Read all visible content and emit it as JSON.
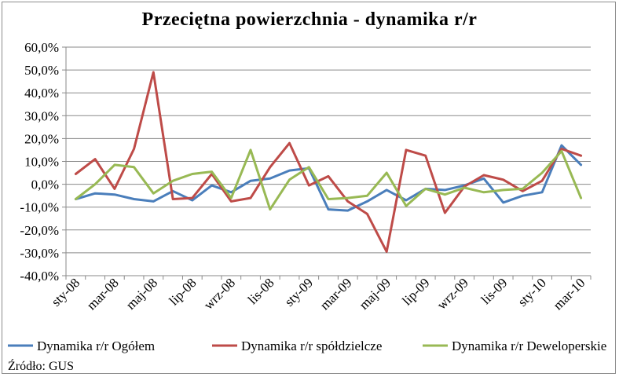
{
  "source_note": "Źródło: GUS",
  "chart_data": {
    "type": "line",
    "title": "Przeciętna powierzchnia - dynamika r/r",
    "xlabel": "",
    "ylabel": "",
    "ylim": [
      -40,
      60
    ],
    "yticks": [
      -40,
      -30,
      -20,
      -10,
      0,
      10,
      20,
      30,
      40,
      50,
      60
    ],
    "ytick_labels": [
      "-40,0%",
      "-30,0%",
      "-20,0%",
      "-10,0%",
      "0,0%",
      "10,0%",
      "20,0%",
      "30,0%",
      "40,0%",
      "50,0%",
      "60,0%"
    ],
    "grid": true,
    "legend": "bottom",
    "categories": [
      "sty-08",
      "lut-08",
      "mar-08",
      "kwi-08",
      "maj-08",
      "cze-08",
      "lip-08",
      "sie-08",
      "wrz-08",
      "paź-08",
      "lis-08",
      "gru-08",
      "sty-09",
      "lut-09",
      "mar-09",
      "kwi-09",
      "maj-09",
      "cze-09",
      "lip-09",
      "sie-09",
      "wrz-09",
      "paź-09",
      "lis-09",
      "gru-09",
      "sty-10",
      "lut-10",
      "mar-10"
    ],
    "tick_labels": [
      "sty-08",
      "mar-08",
      "maj-08",
      "lip-08",
      "wrz-08",
      "lis-08",
      "sty-09",
      "mar-09",
      "maj-09",
      "lip-09",
      "wrz-09",
      "lis-09",
      "sty-10",
      "mar-10"
    ],
    "tick_label_indices": [
      0,
      2,
      4,
      6,
      8,
      10,
      12,
      14,
      16,
      18,
      20,
      22,
      24,
      26
    ],
    "series": [
      {
        "name": "Dynamika r/r Ogółem",
        "color": "#4a7ebb",
        "values": [
          -6.5,
          -4,
          -4.5,
          -6.5,
          -7.5,
          -3,
          -7,
          -0.5,
          -3.5,
          1.5,
          2.5,
          6,
          7,
          -11,
          -11.5,
          -7.5,
          -2.5,
          -7,
          -2,
          -2.5,
          -0.5,
          2.5,
          -8,
          -5,
          -3.5,
          17,
          8.5
        ]
      },
      {
        "name": "Dynamika r/r spółdzielcze",
        "color": "#be4b48",
        "values": [
          4.5,
          11,
          -2,
          15.5,
          49,
          -6.5,
          -6,
          4.5,
          -7.5,
          -6,
          7.5,
          18,
          -0.5,
          3.5,
          -7.5,
          -13,
          -29.5,
          15,
          12.5,
          -12.5,
          -1,
          4,
          2,
          -3,
          1.5,
          15.5,
          12.5
        ]
      },
      {
        "name": "Dynamika r/r Deweloperskie",
        "color": "#98b954",
        "values": [
          -6.5,
          0,
          8.5,
          7.5,
          -4,
          1.5,
          4.5,
          5.5,
          -6,
          15,
          -11,
          2,
          7.5,
          -6.5,
          -6,
          -5,
          5,
          -9.5,
          -2,
          -4.5,
          -1.5,
          -3.5,
          -2.5,
          -2,
          5,
          14.5,
          -6
        ]
      }
    ]
  }
}
